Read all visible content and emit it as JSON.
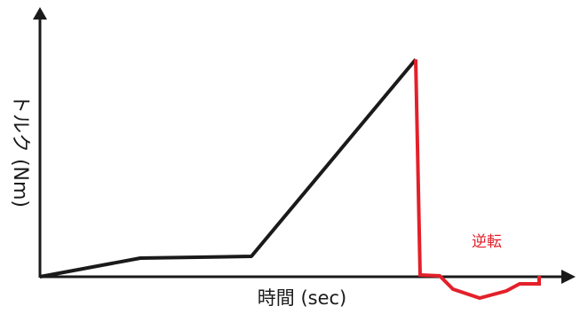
{
  "axes": {
    "y_label": "トルク (Nm)",
    "x_label": "時間 (sec)"
  },
  "annotation": "逆転"
}
